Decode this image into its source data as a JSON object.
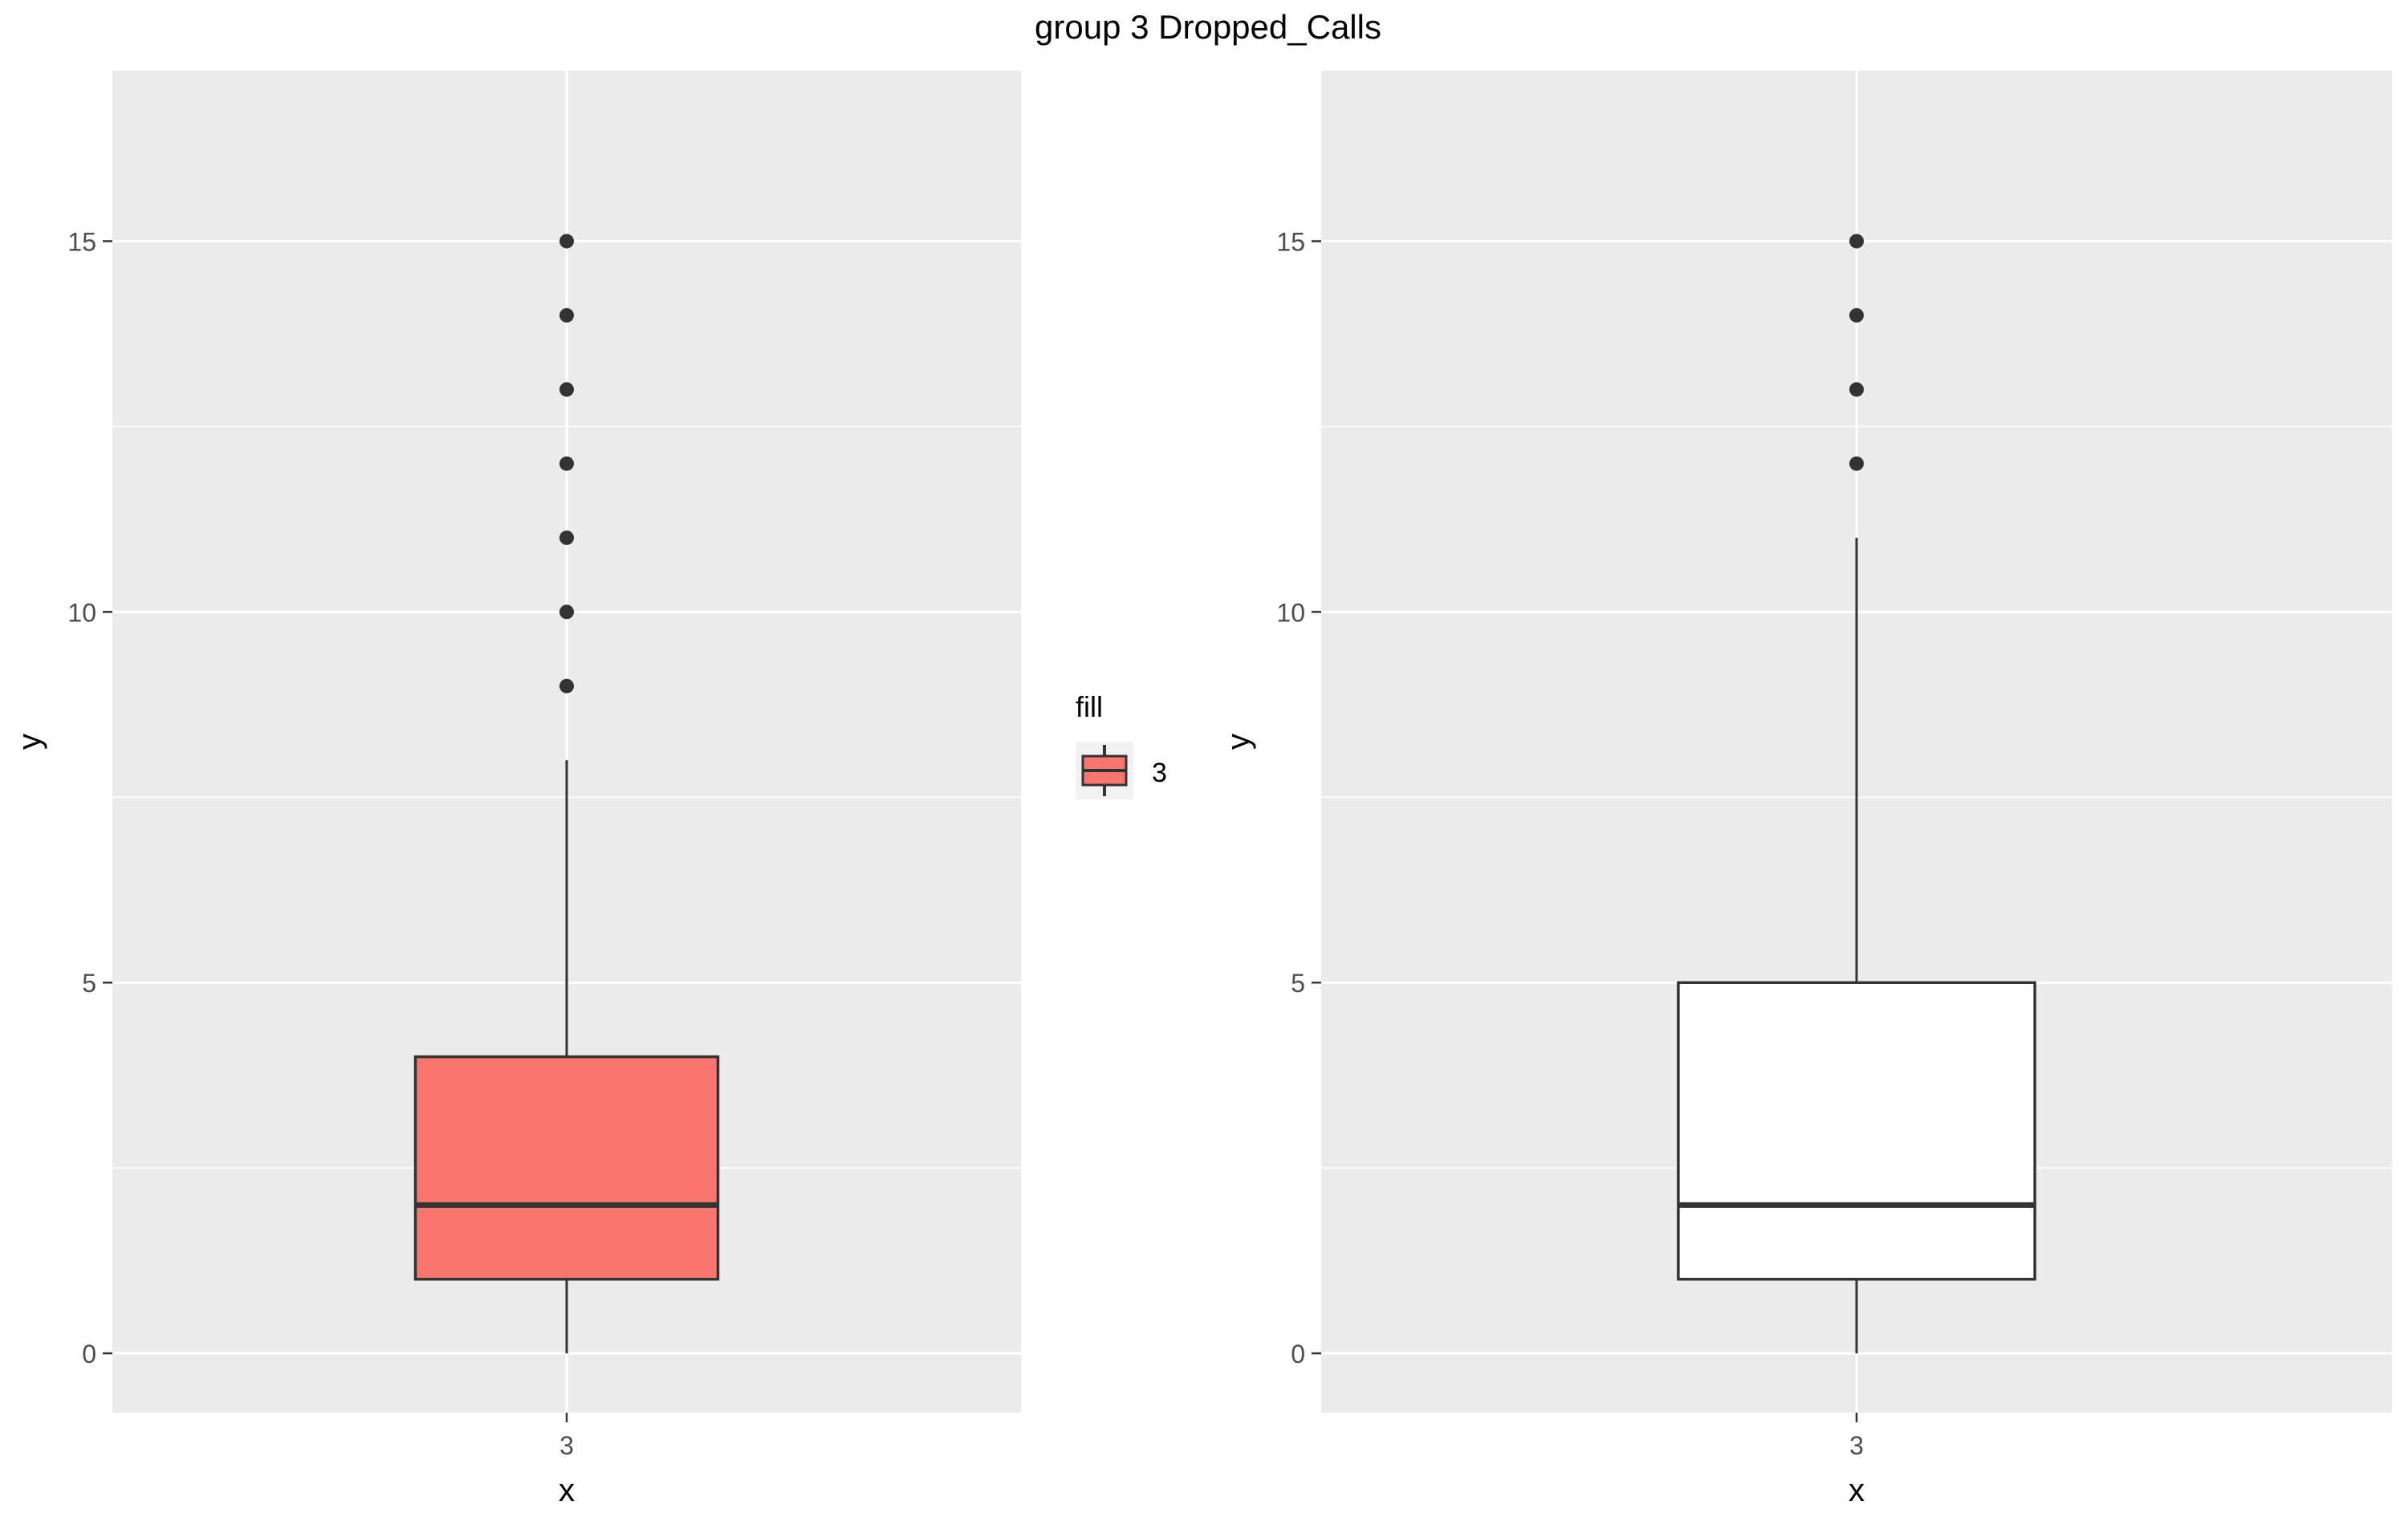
{
  "title": "group 3 Dropped_Calls",
  "legend": {
    "title": "fill",
    "label": "3"
  },
  "colors": {
    "panel": "#EBEBEB",
    "grid": "#FFFFFF",
    "text": "#4D4D4D",
    "dark": "#333333",
    "fill_box": "#F8766D",
    "plain_box": "#FFFFFF"
  },
  "chart_data": [
    {
      "type": "boxplot",
      "xlabel": "x",
      "ylabel": "y",
      "categories": [
        "3"
      ],
      "ylim": [
        -0.8,
        17.3
      ],
      "yticks": [
        0,
        5,
        10,
        15
      ],
      "box": {
        "lower_whisker": 0,
        "q1": 1,
        "median": 2,
        "q3": 4,
        "upper_whisker": 8
      },
      "outliers": [
        9,
        10,
        11,
        12,
        13,
        14,
        15
      ],
      "fill": "#F8766D"
    },
    {
      "type": "boxplot",
      "xlabel": "x",
      "ylabel": "y",
      "categories": [
        "3"
      ],
      "ylim": [
        -0.8,
        17.3
      ],
      "yticks": [
        0,
        5,
        10,
        15
      ],
      "box": {
        "lower_whisker": 0,
        "q1": 1,
        "median": 2,
        "q3": 5,
        "upper_whisker": 11
      },
      "outliers": [
        12,
        13,
        14,
        15
      ],
      "fill": "#FFFFFF"
    }
  ]
}
